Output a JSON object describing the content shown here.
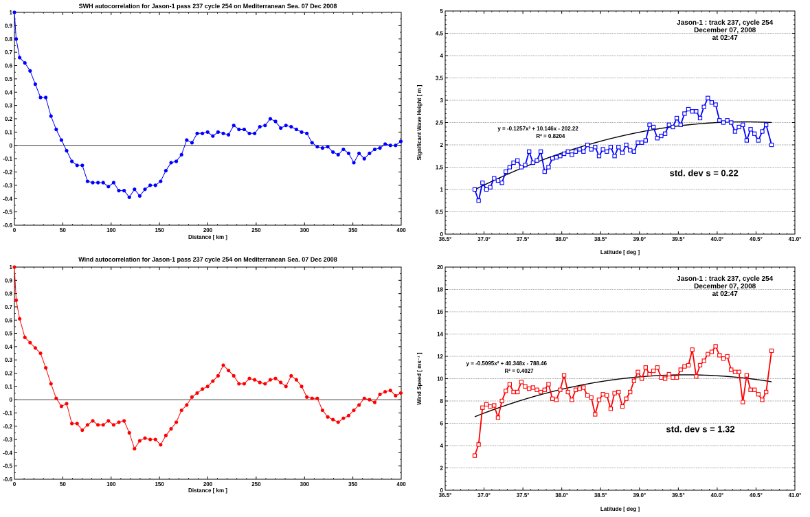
{
  "chart_data": [
    {
      "id": "swh_acf",
      "type": "line",
      "title": "SWH autocorrelation for Jason-1 pass 237 cycle 254 on Mediterranean Sea.       07 Dec 2008",
      "xlabel": "Distance [ km ]",
      "ylabel": "",
      "xlim": [
        0,
        400
      ],
      "ylim": [
        -0.6,
        1.0
      ],
      "x_ticks": [
        "0",
        "50",
        "100",
        "150",
        "200",
        "250",
        "300",
        "350",
        "400"
      ],
      "y_ticks": [
        "-0.6",
        "-0.5",
        "-0.4",
        "-0.3",
        "-0.2",
        "-0.1",
        "0",
        "0.1",
        "0.2",
        "0.3",
        "0.4",
        "0.5",
        "0.6",
        "0.7",
        "0.8",
        "0.9",
        "1"
      ],
      "color": "#0000ff",
      "marker": "circle",
      "zero_line": true,
      "series": [
        {
          "x": [
            0,
            1.8,
            5.4,
            10.8,
            16.2,
            21.6,
            27,
            32.4,
            37.8,
            43.2,
            48.6,
            54,
            59.4,
            64.8,
            70.2,
            75.6,
            81,
            86.4,
            91.8,
            97.2,
            102.6,
            108,
            113.4,
            118.8,
            124.2,
            129.6,
            135,
            140.4,
            145.8,
            151.2,
            156.6,
            162,
            167.4,
            172.8,
            178.2,
            183.6,
            189,
            194.4,
            199.8,
            205.2,
            210.6,
            216,
            221.4,
            226.8,
            232.2,
            237.6,
            243,
            248.4,
            253.8,
            259.2,
            264.6,
            270,
            275.4,
            280.8,
            286.2,
            291.6,
            297,
            302.4,
            307.8,
            313.2,
            318.6,
            324,
            329.4,
            334.8,
            340.2,
            345.6,
            351,
            356.4,
            361.8,
            367.2,
            372.6,
            378,
            383.4,
            388.8,
            394.2,
            399.6
          ],
          "y": [
            1.0,
            0.8,
            0.66,
            0.62,
            0.56,
            0.46,
            0.36,
            0.36,
            0.22,
            0.12,
            0.04,
            -0.04,
            -0.12,
            -0.15,
            -0.15,
            -0.27,
            -0.28,
            -0.28,
            -0.28,
            -0.31,
            -0.28,
            -0.34,
            -0.34,
            -0.39,
            -0.33,
            -0.38,
            -0.33,
            -0.3,
            -0.3,
            -0.27,
            -0.19,
            -0.13,
            -0.12,
            -0.07,
            0.04,
            0.02,
            0.09,
            0.09,
            0.1,
            0.07,
            0.1,
            0.09,
            0.08,
            0.15,
            0.12,
            0.12,
            0.09,
            0.09,
            0.14,
            0.15,
            0.2,
            0.18,
            0.13,
            0.15,
            0.14,
            0.12,
            0.1,
            0.09,
            0.02,
            -0.01,
            -0.02,
            -0.01,
            -0.05,
            -0.07,
            -0.03,
            -0.06,
            -0.13,
            -0.06,
            -0.1,
            -0.06,
            -0.03,
            -0.02,
            0.01,
            0.0,
            0.0,
            0.03
          ]
        }
      ]
    },
    {
      "id": "swh_lat",
      "type": "line",
      "title": "",
      "xlabel": "Latitude [ deg ]",
      "ylabel": "Significant Wave Height [ m ]",
      "xlim": [
        36.5,
        41.0
      ],
      "ylim": [
        0,
        5
      ],
      "x_ticks": [
        "36.5°",
        "37.0°",
        "37.5°",
        "38.0°",
        "38.5°",
        "39.0°",
        "39.5°",
        "40.0°",
        "40.5°",
        "41.0°"
      ],
      "y_ticks": [
        "0",
        "0.5",
        "1",
        "1.5",
        "2",
        "2.5",
        "3",
        "3.5",
        "4",
        "4.5",
        "5"
      ],
      "color": "#0000ff",
      "marker": "square",
      "grid_y": true,
      "annotation": [
        "Jason-1 : track 237, cycle 254",
        "December 07, 2008",
        "at 02:47"
      ],
      "fit": {
        "coef": [
          -0.1257,
          10.146,
          -202.22
        ],
        "x_range": [
          36.88,
          40.7
        ],
        "eq_label": "y = -0.1257x² + 10.146x - 202.22",
        "r2_label": "R² = 0.8204"
      },
      "stddev_label": "std. dev  s    = 0.22",
      "series": [
        {
          "x": [
            36.88,
            36.93,
            36.98,
            37.03,
            37.08,
            37.13,
            37.18,
            37.23,
            37.28,
            37.33,
            37.38,
            37.43,
            37.48,
            37.53,
            37.58,
            37.63,
            37.68,
            37.73,
            37.78,
            37.83,
            37.88,
            37.93,
            37.98,
            38.03,
            38.08,
            38.13,
            38.18,
            38.23,
            38.28,
            38.33,
            38.38,
            38.43,
            38.48,
            38.53,
            38.58,
            38.63,
            38.68,
            38.73,
            38.78,
            38.83,
            38.88,
            38.93,
            38.98,
            39.03,
            39.08,
            39.13,
            39.18,
            39.23,
            39.28,
            39.33,
            39.38,
            39.43,
            39.48,
            39.53,
            39.58,
            39.63,
            39.68,
            39.73,
            39.78,
            39.83,
            39.88,
            39.93,
            39.98,
            40.03,
            40.08,
            40.13,
            40.18,
            40.23,
            40.28,
            40.33,
            40.38,
            40.43,
            40.48,
            40.53,
            40.58,
            40.63,
            40.7
          ],
          "y": [
            1.0,
            0.75,
            1.15,
            1.0,
            1.05,
            1.25,
            1.2,
            1.15,
            1.4,
            1.5,
            1.6,
            1.65,
            1.5,
            1.55,
            1.85,
            1.6,
            1.65,
            1.85,
            1.4,
            1.5,
            1.7,
            1.72,
            1.75,
            1.8,
            1.85,
            1.78,
            1.85,
            1.9,
            1.85,
            2.0,
            1.9,
            1.95,
            1.75,
            1.9,
            1.85,
            1.95,
            1.75,
            1.95,
            1.82,
            2.0,
            1.88,
            1.85,
            2.05,
            2.05,
            2.1,
            2.45,
            2.4,
            2.15,
            2.2,
            2.25,
            2.45,
            2.4,
            2.6,
            2.45,
            2.7,
            2.8,
            2.75,
            2.75,
            2.6,
            2.85,
            3.05,
            2.95,
            2.9,
            2.55,
            2.5,
            2.55,
            2.5,
            2.3,
            2.4,
            2.45,
            2.1,
            2.35,
            2.25,
            2.1,
            2.3,
            2.45,
            2.0
          ]
        }
      ]
    },
    {
      "id": "wind_acf",
      "type": "line",
      "title": "Wind autocorrelation for Jason-1 pass 237 cycle 254 on Mediterranean Sea.       07 Dec 2008",
      "xlabel": "Distance [ km ]",
      "ylabel": "",
      "xlim": [
        0,
        400
      ],
      "ylim": [
        -0.6,
        1.0
      ],
      "x_ticks": [
        "0",
        "50",
        "100",
        "150",
        "200",
        "250",
        "300",
        "350",
        "400"
      ],
      "y_ticks": [
        "-0.6",
        "-0.5",
        "-0.4",
        "-0.3",
        "-0.2",
        "-0.1",
        "0",
        "0.1",
        "0.2",
        "0.3",
        "0.4",
        "0.5",
        "0.6",
        "0.7",
        "0.8",
        "0.9",
        "1"
      ],
      "color": "#ff0000",
      "marker": "circle",
      "zero_line": true,
      "series": [
        {
          "x": [
            0,
            1.8,
            5.4,
            10.8,
            16.2,
            21.6,
            27,
            32.4,
            37.8,
            43.2,
            48.6,
            54,
            59.4,
            64.8,
            70.2,
            75.6,
            81,
            86.4,
            91.8,
            97.2,
            102.6,
            108,
            113.4,
            118.8,
            124.2,
            129.6,
            135,
            140.4,
            145.8,
            151.2,
            156.6,
            162,
            167.4,
            172.8,
            178.2,
            183.6,
            189,
            194.4,
            199.8,
            205.2,
            210.6,
            216,
            221.4,
            226.8,
            232.2,
            237.6,
            243,
            248.4,
            253.8,
            259.2,
            264.6,
            270,
            275.4,
            280.8,
            286.2,
            291.6,
            297,
            302.4,
            307.8,
            313.2,
            318.6,
            324,
            329.4,
            334.8,
            340.2,
            345.6,
            351,
            356.4,
            361.8,
            367.2,
            372.6,
            378,
            383.4,
            388.8,
            394.2,
            399.6
          ],
          "y": [
            1.0,
            0.75,
            0.61,
            0.47,
            0.43,
            0.39,
            0.35,
            0.24,
            0.12,
            0.01,
            -0.05,
            -0.03,
            -0.18,
            -0.18,
            -0.23,
            -0.19,
            -0.16,
            -0.19,
            -0.19,
            -0.16,
            -0.19,
            -0.17,
            -0.16,
            -0.25,
            -0.37,
            -0.31,
            -0.29,
            -0.3,
            -0.3,
            -0.34,
            -0.27,
            -0.22,
            -0.17,
            -0.08,
            -0.04,
            0.02,
            0.05,
            0.08,
            0.1,
            0.14,
            0.18,
            0.26,
            0.22,
            0.18,
            0.12,
            0.12,
            0.16,
            0.15,
            0.13,
            0.12,
            0.15,
            0.16,
            0.13,
            0.1,
            0.18,
            0.15,
            0.1,
            0.02,
            0.01,
            0.01,
            -0.08,
            -0.13,
            -0.15,
            -0.17,
            -0.14,
            -0.12,
            -0.08,
            -0.04,
            0.01,
            0.0,
            -0.02,
            0.04,
            0.06,
            0.07,
            0.03,
            0.05
          ]
        }
      ]
    },
    {
      "id": "wind_lat",
      "type": "line",
      "title": "",
      "xlabel": "Latitude [ deg ]",
      "ylabel": "Wind Speed [ ms⁻¹ ]",
      "xlim": [
        36.5,
        41.0
      ],
      "ylim": [
        0,
        20
      ],
      "x_ticks": [
        "36.5°",
        "37.0°",
        "37.5°",
        "38.0°",
        "38.5°",
        "39.0°",
        "39.5°",
        "40.0°",
        "40.5°",
        "41.0°"
      ],
      "y_ticks": [
        "0",
        "2",
        "4",
        "6",
        "8",
        "10",
        "12",
        "14",
        "16",
        "18",
        "20"
      ],
      "color": "#ff0000",
      "marker": "square",
      "grid_y": true,
      "annotation": [
        "Jason-1 : track 237, cycle 254",
        "December 07, 2008",
        "at 02:47"
      ],
      "fit": {
        "coef": [
          -0.5095,
          40.348,
          -788.46
        ],
        "x_range": [
          36.88,
          40.7
        ],
        "eq_label": "y = -0.5095x² + 40.348x - 788.46",
        "r2_label": "R² = 0.4027"
      },
      "stddev_label": "std. dev  s    = 1.32",
      "series": [
        {
          "x": [
            36.88,
            36.93,
            36.98,
            37.03,
            37.08,
            37.13,
            37.18,
            37.23,
            37.28,
            37.33,
            37.38,
            37.43,
            37.48,
            37.53,
            37.58,
            37.63,
            37.68,
            37.73,
            37.78,
            37.83,
            37.88,
            37.93,
            37.98,
            38.03,
            38.08,
            38.13,
            38.18,
            38.23,
            38.28,
            38.33,
            38.38,
            38.43,
            38.48,
            38.53,
            38.58,
            38.63,
            38.68,
            38.73,
            38.78,
            38.83,
            38.88,
            38.93,
            38.98,
            39.03,
            39.08,
            39.13,
            39.18,
            39.23,
            39.28,
            39.33,
            39.38,
            39.43,
            39.48,
            39.53,
            39.58,
            39.63,
            39.68,
            39.73,
            39.78,
            39.83,
            39.88,
            39.93,
            39.98,
            40.03,
            40.08,
            40.13,
            40.18,
            40.23,
            40.28,
            40.33,
            40.38,
            40.43,
            40.48,
            40.53,
            40.58,
            40.63,
            40.7
          ],
          "y": [
            3.1,
            4.1,
            7.4,
            7.7,
            7.5,
            7.6,
            6.5,
            8.0,
            8.9,
            9.5,
            8.8,
            8.8,
            9.7,
            9.3,
            9.1,
            9.2,
            9.0,
            8.8,
            9.0,
            9.5,
            8.2,
            8.1,
            9.0,
            10.3,
            8.8,
            8.1,
            9.0,
            9.1,
            9.2,
            8.5,
            8.3,
            6.8,
            8.1,
            8.6,
            8.5,
            7.3,
            8.7,
            8.8,
            7.5,
            8.2,
            8.8,
            9.8,
            10.6,
            10.0,
            11.0,
            10.4,
            10.7,
            11.0,
            10.1,
            10.0,
            10.4,
            10.1,
            10.1,
            10.8,
            11.1,
            11.2,
            12.6,
            10.2,
            11.2,
            11.6,
            12.2,
            12.4,
            12.9,
            12.1,
            11.8,
            12.0,
            10.8,
            10.6,
            10.6,
            7.9,
            10.3,
            9.0,
            9.0,
            8.6,
            8.1,
            8.8,
            12.5
          ]
        }
      ]
    }
  ]
}
